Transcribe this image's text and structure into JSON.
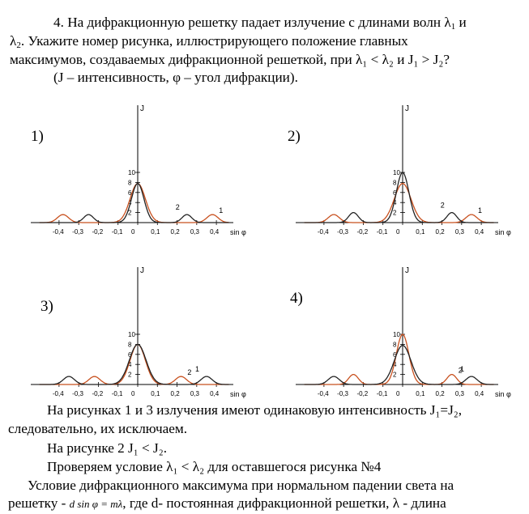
{
  "task": {
    "line1": "4. На дифракционную решетку падает излучение с длинами волн λ",
    "line1_sub": "1",
    "line1_end": " и",
    "line2_a": "λ",
    "line2_sub": "2",
    "line2_b": ". Укажите номер рисунка, иллюстрирующего положение главных",
    "line3": "максимумов, создаваемых дифракционной решеткой, при λ₁ < λ₂ и J₁ > J₂?",
    "line4": "(J – интенсивность, φ – угол дифракции)."
  },
  "figures": [
    {
      "label": "1)",
      "curve1": "red",
      "curve2": "black",
      "second_peak_label": "2",
      "first_peak_label": "1"
    },
    {
      "label": "2)",
      "second_peak_label": "2",
      "first_peak_label": "1"
    },
    {
      "label": "3)",
      "second_peak_label": "1",
      "first_peak_label": "2"
    },
    {
      "label": "4)",
      "second_peak_label": "1",
      "first_peak_label": "2"
    }
  ],
  "axes": {
    "y_label": "J",
    "x_label": "sin φ",
    "y_ticks": [
      "2",
      "4",
      "6",
      "8",
      "10"
    ],
    "x_ticks": [
      "-0,4",
      "-0,3",
      "-0,2",
      "-0,1",
      "0",
      "0,1",
      "0,2",
      "0,3",
      "0,4"
    ]
  },
  "colors": {
    "red_curve": "#c8501e",
    "black_curve": "#222222"
  },
  "answer": {
    "p1": "На рисунках 1 и 3  излучения имеют одинаковую  интенсивность J₁=J₂,",
    "p2": "следовательно, их исключаем.",
    "p3": "На рисунке 2   J₁ < J₂.",
    "p4": "Проверяем условие λ₁ < λ₂ для оставшегося рисунка №4",
    "p5": "Условие дифракционного максимума при нормальном падении света на",
    "p6a": "решетку - ",
    "formula": "d sin φ = mλ",
    "p6b": ", где d- постоянная дифракционной решетки, λ - длина"
  }
}
